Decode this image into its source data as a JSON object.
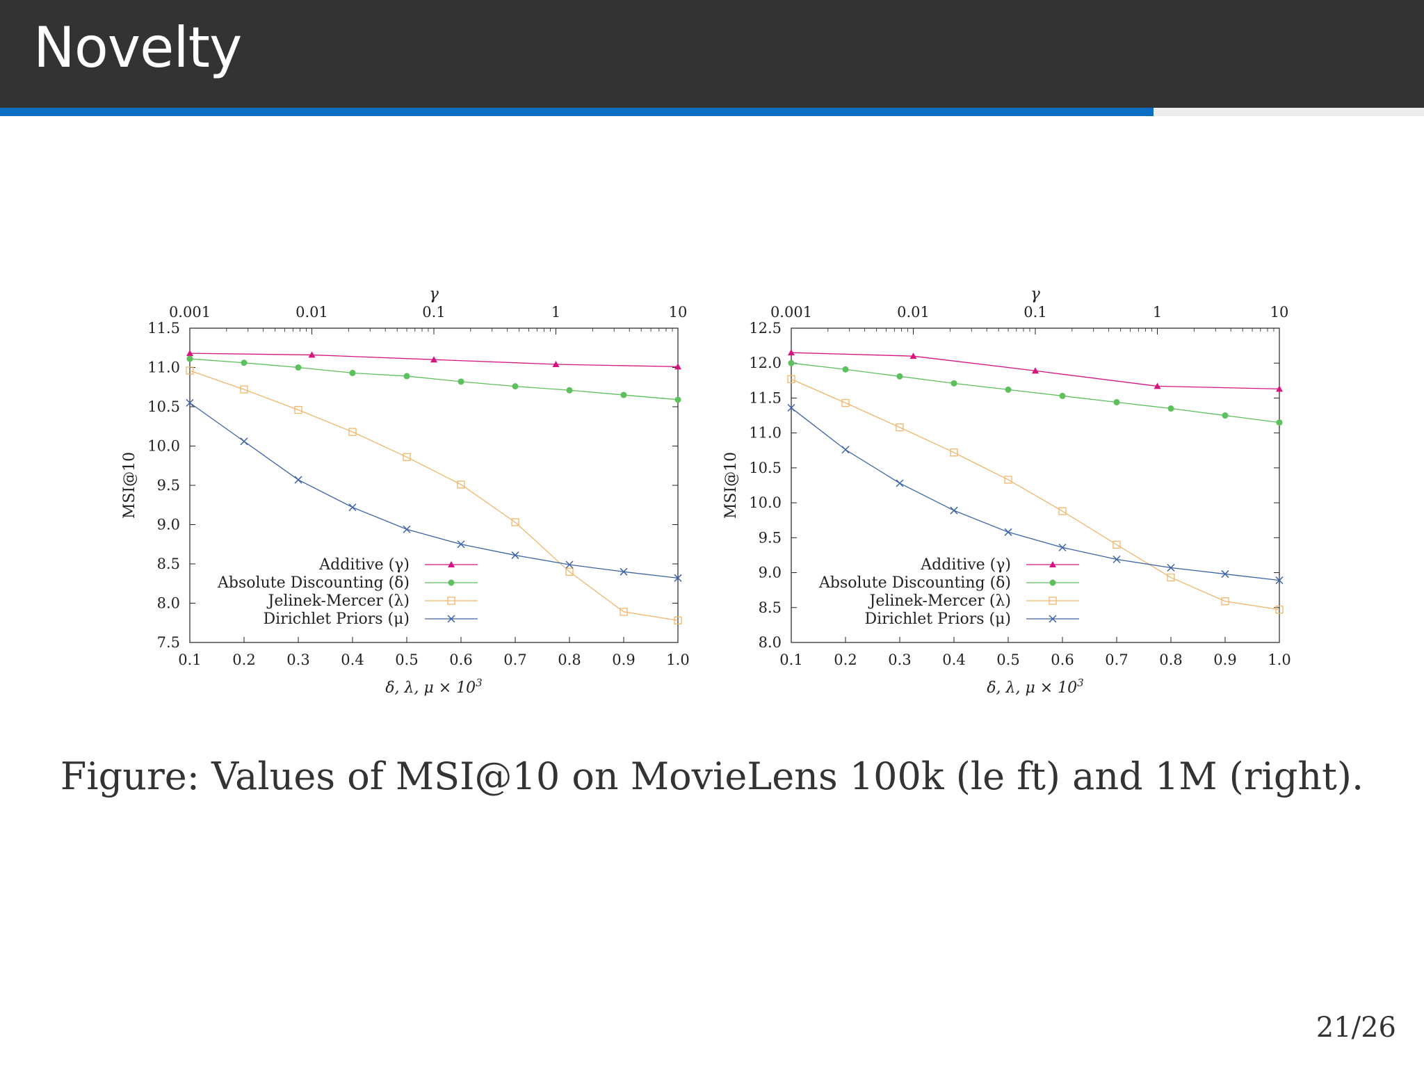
{
  "slide": {
    "title": "Novelty",
    "progress": 0.81,
    "caption": "Figure:  Values of MSI@10 on MovieLens 100k (le ft) and 1M (right).",
    "page_number": "21/26"
  },
  "colors": {
    "header": "#333333",
    "accent": "#0a6fc2",
    "additive": "#d6137f",
    "absolute": "#5cc05c",
    "jelinek": "#f2b56b",
    "dirichlet": "#3d64a8"
  },
  "chart_data": [
    {
      "type": "line",
      "name": "MovieLens 100k",
      "xlabel": "δ, λ, μ × 10",
      "xlabel_sup": "3",
      "ylabel": "MSI@10",
      "toplabel": "γ",
      "xlim": [
        0.1,
        1.0
      ],
      "ylim": [
        7.5,
        11.5
      ],
      "x_ticks": [
        "0.1",
        "0.2",
        "0.3",
        "0.4",
        "0.5",
        "0.6",
        "0.7",
        "0.8",
        "0.9",
        "1.0"
      ],
      "y_ticks": [
        "7.5",
        "8.0",
        "8.5",
        "9.0",
        "9.5",
        "10.0",
        "10.5",
        "11.0",
        "11.5"
      ],
      "top_ticks": [
        "0.001",
        "0.01",
        "0.1",
        "1",
        "10"
      ],
      "top_log_range": [
        -3,
        1
      ],
      "legend": "bottom-left",
      "series": [
        {
          "name": "Additive (γ)",
          "marker": "triangle",
          "color": "#d6137f",
          "axis": "top",
          "x": [
            0.001,
            0.01,
            0.1,
            1,
            10
          ],
          "y": [
            11.18,
            11.16,
            11.1,
            11.04,
            11.01
          ]
        },
        {
          "name": "Absolute Discounting (δ)",
          "marker": "circle",
          "color": "#5cc05c",
          "axis": "bottom",
          "x": [
            0.1,
            0.2,
            0.3,
            0.4,
            0.5,
            0.6,
            0.7,
            0.8,
            0.9,
            1.0
          ],
          "y": [
            11.11,
            11.06,
            11.0,
            10.93,
            10.89,
            10.82,
            10.76,
            10.71,
            10.65,
            10.59
          ]
        },
        {
          "name": "Jelinek-Mercer (λ)",
          "marker": "square",
          "color": "#f2b56b",
          "axis": "bottom",
          "x": [
            0.1,
            0.2,
            0.3,
            0.4,
            0.5,
            0.6,
            0.7,
            0.8,
            0.9,
            1.0
          ],
          "y": [
            10.96,
            10.72,
            10.46,
            10.18,
            9.86,
            9.51,
            9.03,
            8.4,
            7.89,
            7.78
          ]
        },
        {
          "name": "Dirichlet Priors (μ)",
          "marker": "cross",
          "color": "#3d64a8",
          "axis": "bottom",
          "x": [
            0.1,
            0.2,
            0.3,
            0.4,
            0.5,
            0.6,
            0.7,
            0.8,
            0.9,
            1.0
          ],
          "y": [
            10.55,
            10.06,
            9.57,
            9.22,
            8.94,
            8.75,
            8.61,
            8.49,
            8.4,
            8.32
          ]
        }
      ]
    },
    {
      "type": "line",
      "name": "MovieLens 1M",
      "xlabel": "δ, λ, μ × 10",
      "xlabel_sup": "3",
      "ylabel": "MSI@10",
      "toplabel": "γ",
      "xlim": [
        0.1,
        1.0
      ],
      "ylim": [
        8.0,
        12.5
      ],
      "x_ticks": [
        "0.1",
        "0.2",
        "0.3",
        "0.4",
        "0.5",
        "0.6",
        "0.7",
        "0.8",
        "0.9",
        "1.0"
      ],
      "y_ticks": [
        "8.0",
        "8.5",
        "9.0",
        "9.5",
        "10.0",
        "10.5",
        "11.0",
        "11.5",
        "12.0",
        "12.5"
      ],
      "top_ticks": [
        "0.001",
        "0.01",
        "0.1",
        "1",
        "10"
      ],
      "top_log_range": [
        -3,
        1
      ],
      "legend": "bottom-left",
      "series": [
        {
          "name": "Additive (γ)",
          "marker": "triangle",
          "color": "#d6137f",
          "axis": "top",
          "x": [
            0.001,
            0.01,
            0.1,
            1,
            10
          ],
          "y": [
            12.15,
            12.1,
            11.89,
            11.67,
            11.63
          ]
        },
        {
          "name": "Absolute Discounting (δ)",
          "marker": "circle",
          "color": "#5cc05c",
          "axis": "bottom",
          "x": [
            0.1,
            0.2,
            0.3,
            0.4,
            0.5,
            0.6,
            0.7,
            0.8,
            0.9,
            1.0
          ],
          "y": [
            12.0,
            11.91,
            11.81,
            11.71,
            11.62,
            11.53,
            11.44,
            11.35,
            11.25,
            11.15
          ]
        },
        {
          "name": "Jelinek-Mercer (λ)",
          "marker": "square",
          "color": "#f2b56b",
          "axis": "bottom",
          "x": [
            0.1,
            0.2,
            0.3,
            0.4,
            0.5,
            0.6,
            0.7,
            0.8,
            0.9,
            1.0
          ],
          "y": [
            11.77,
            11.43,
            11.08,
            10.72,
            10.33,
            9.88,
            9.4,
            8.93,
            8.59,
            8.47
          ]
        },
        {
          "name": "Dirichlet Priors (μ)",
          "marker": "cross",
          "color": "#3d64a8",
          "axis": "bottom",
          "x": [
            0.1,
            0.2,
            0.3,
            0.4,
            0.5,
            0.6,
            0.7,
            0.8,
            0.9,
            1.0
          ],
          "y": [
            11.36,
            10.76,
            10.28,
            9.89,
            9.58,
            9.36,
            9.19,
            9.07,
            8.98,
            8.89
          ]
        }
      ]
    }
  ]
}
